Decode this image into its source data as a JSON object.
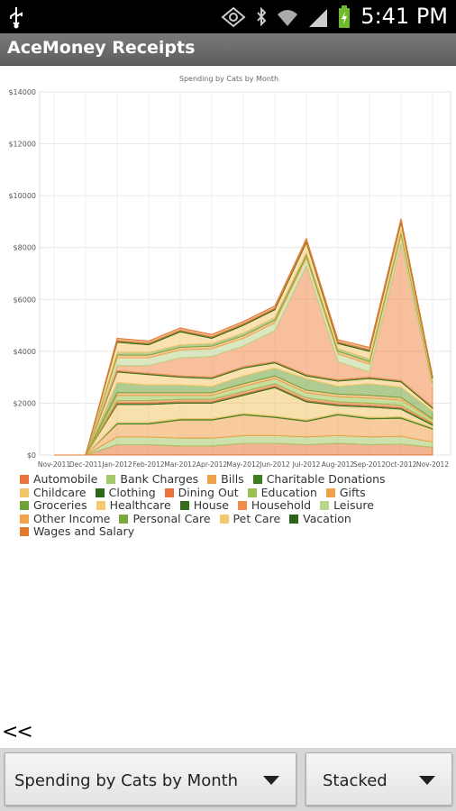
{
  "status_bar": {
    "time": "5:41 PM"
  },
  "app": {
    "title": "AceMoney Receipts"
  },
  "chart_data": {
    "type": "area",
    "stacked": true,
    "title": "Spending by Cats by Month",
    "x_labels": [
      "Nov-2011",
      "Dec-2011",
      "Jan-2012",
      "Feb-2012",
      "Mar-2012",
      "Apr-2012",
      "May-2012",
      "Jun-2012",
      "Jul-2012",
      "Aug-2012",
      "Sep-2012",
      "Oct-2012",
      "Nov-2012"
    ],
    "y_ticks": [
      "$0",
      "$2000",
      "$4000",
      "$6000",
      "$8000",
      "$10000",
      "$12000",
      "$14000"
    ],
    "ylim": [
      0,
      14000
    ],
    "grid": true,
    "series": [
      {
        "name": "Automobile",
        "color": "#e8743b",
        "values": [
          0,
          0,
          400,
          400,
          350,
          350,
          450,
          450,
          400,
          450,
          400,
          420,
          300
        ]
      },
      {
        "name": "Bank Charges",
        "color": "#a6c96a",
        "values": [
          0,
          0,
          300,
          300,
          300,
          300,
          300,
          300,
          300,
          300,
          300,
          300,
          200
        ]
      },
      {
        "name": "Bills",
        "color": "#f0a04b",
        "values": [
          0,
          0,
          500,
          500,
          700,
          700,
          800,
          700,
          600,
          800,
          700,
          700,
          500
        ]
      },
      {
        "name": "Charitable Donations",
        "color": "#3d7d1b",
        "values": [
          0,
          0,
          50,
          50,
          50,
          50,
          50,
          50,
          50,
          50,
          50,
          50,
          50
        ]
      },
      {
        "name": "Childcare",
        "color": "#f3c66a",
        "values": [
          0,
          0,
          700,
          700,
          600,
          600,
          700,
          1100,
          700,
          300,
          400,
          300,
          100
        ]
      },
      {
        "name": "Clothing",
        "color": "#2c6a17",
        "values": [
          0,
          0,
          50,
          50,
          50,
          50,
          50,
          50,
          50,
          50,
          50,
          50,
          50
        ]
      },
      {
        "name": "Dining Out",
        "color": "#e8743b",
        "values": [
          0,
          0,
          100,
          100,
          100,
          100,
          100,
          100,
          100,
          100,
          100,
          100,
          50
        ]
      },
      {
        "name": "Education",
        "color": "#9bc24f",
        "values": [
          0,
          0,
          200,
          200,
          150,
          150,
          200,
          200,
          200,
          200,
          200,
          200,
          100
        ]
      },
      {
        "name": "Gifts",
        "color": "#f0a04b",
        "values": [
          0,
          0,
          100,
          100,
          100,
          100,
          100,
          100,
          100,
          100,
          100,
          100,
          50
        ]
      },
      {
        "name": "Groceries",
        "color": "#6fa33a",
        "values": [
          0,
          0,
          400,
          300,
          300,
          250,
          300,
          300,
          450,
          300,
          450,
          400,
          300
        ]
      },
      {
        "name": "Healthcare",
        "color": "#f7c96e",
        "values": [
          0,
          0,
          400,
          400,
          300,
          300,
          300,
          200,
          100,
          200,
          200,
          200,
          100
        ]
      },
      {
        "name": "House",
        "color": "#356d1c",
        "values": [
          0,
          0,
          50,
          50,
          50,
          50,
          50,
          50,
          50,
          50,
          50,
          50,
          50
        ]
      },
      {
        "name": "Household",
        "color": "#f28a4c",
        "values": [
          0,
          0,
          200,
          300,
          700,
          800,
          800,
          1200,
          4200,
          700,
          200,
          5300,
          800
        ]
      },
      {
        "name": "Leisure",
        "color": "#b9d58c",
        "values": [
          0,
          0,
          300,
          300,
          300,
          300,
          300,
          300,
          300,
          300,
          300,
          300,
          100
        ]
      },
      {
        "name": "Other Income",
        "color": "#f3a14c",
        "values": [
          0,
          0,
          100,
          100,
          100,
          100,
          100,
          100,
          100,
          100,
          100,
          100,
          50
        ]
      },
      {
        "name": "Personal Care",
        "color": "#7aa83f",
        "values": [
          0,
          0,
          100,
          100,
          100,
          100,
          100,
          100,
          100,
          100,
          100,
          100,
          50
        ]
      },
      {
        "name": "Pet Care",
        "color": "#f5c86f",
        "values": [
          0,
          0,
          400,
          300,
          500,
          200,
          300,
          300,
          400,
          200,
          300,
          300,
          100
        ]
      },
      {
        "name": "Vacation",
        "color": "#2d6415",
        "values": [
          0,
          0,
          50,
          50,
          50,
          50,
          50,
          50,
          50,
          50,
          50,
          50,
          50
        ]
      },
      {
        "name": "Wages and Salary",
        "color": "#e27a30",
        "values": [
          0,
          0,
          100,
          100,
          100,
          100,
          100,
          100,
          100,
          100,
          100,
          100,
          50
        ]
      }
    ]
  },
  "controls": {
    "back_label": "<<",
    "report_select": "Spending by Cats by Month",
    "mode_select": "Stacked"
  }
}
